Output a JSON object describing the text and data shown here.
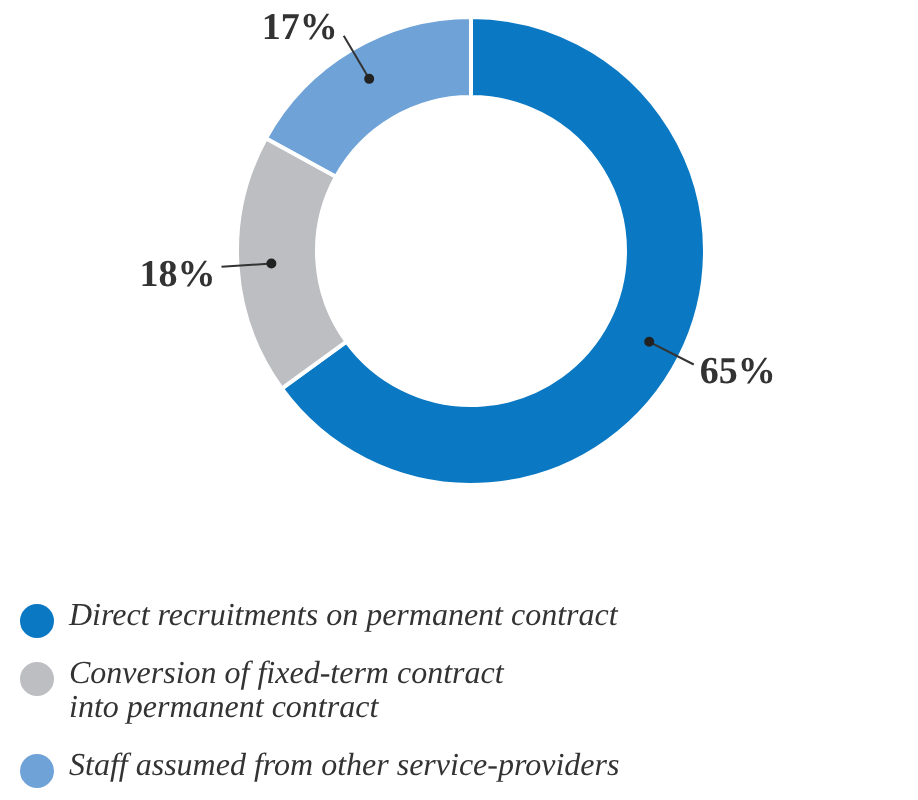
{
  "chart_data": {
    "type": "donut",
    "categories": [
      "Direct recruitments on permanent contract",
      "Conversion of fixed-term contract\ninto permanent contract",
      "Staff assumed from other service-providers"
    ],
    "values": [
      65,
      18,
      17
    ],
    "colors": [
      "#0a78c2",
      "#bdbec2",
      "#6fa3d8"
    ],
    "value_labels": [
      "65%",
      "18%",
      "17%"
    ],
    "legend": "bottom"
  }
}
